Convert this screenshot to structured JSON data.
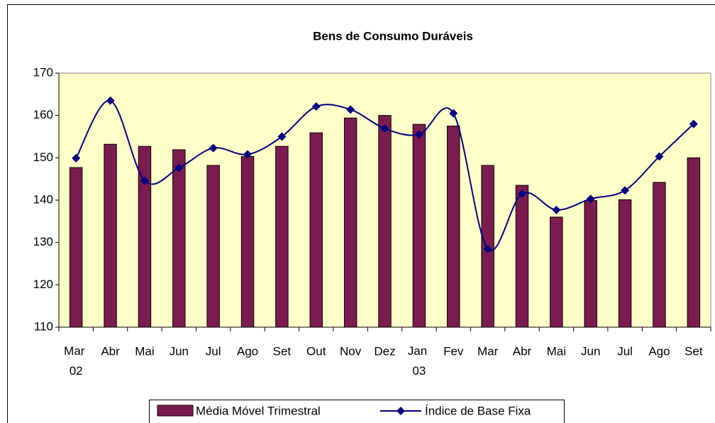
{
  "chart_data": {
    "type": "bar_line",
    "title": "Bens de Consumo Duráveis",
    "categories": [
      "Mar 02",
      "Abr",
      "Mai",
      "Jun",
      "Jul",
      "Ago",
      "Set",
      "Out",
      "Nov",
      "Dez",
      "Jan 03",
      "Fev",
      "Mar",
      "Abr",
      "Mai",
      "Jun",
      "Jul",
      "Ago",
      "Set"
    ],
    "series": [
      {
        "name": "Média Móvel Trimestral",
        "type": "bar",
        "color": "#7b1c50",
        "values": [
          147.7,
          153.2,
          152.7,
          151.9,
          148.2,
          150.3,
          152.7,
          155.9,
          159.4,
          160.0,
          157.9,
          157.5,
          148.2,
          143.5,
          136.0,
          139.9,
          140.1,
          144.2,
          150.0
        ]
      },
      {
        "name": "Índice de Base Fixa",
        "type": "line",
        "color": "#000080",
        "values": [
          149.9,
          163.5,
          144.6,
          147.6,
          152.3,
          150.8,
          155.0,
          162.1,
          161.4,
          156.9,
          155.5,
          160.5,
          128.5,
          141.5,
          137.7,
          140.3,
          142.3,
          150.3,
          158.0
        ]
      }
    ],
    "ylim": [
      110,
      170
    ],
    "yticks": [
      110,
      120,
      130,
      140,
      150,
      160,
      170
    ],
    "plot_background": "#ffffc8",
    "legend": "bottom"
  }
}
